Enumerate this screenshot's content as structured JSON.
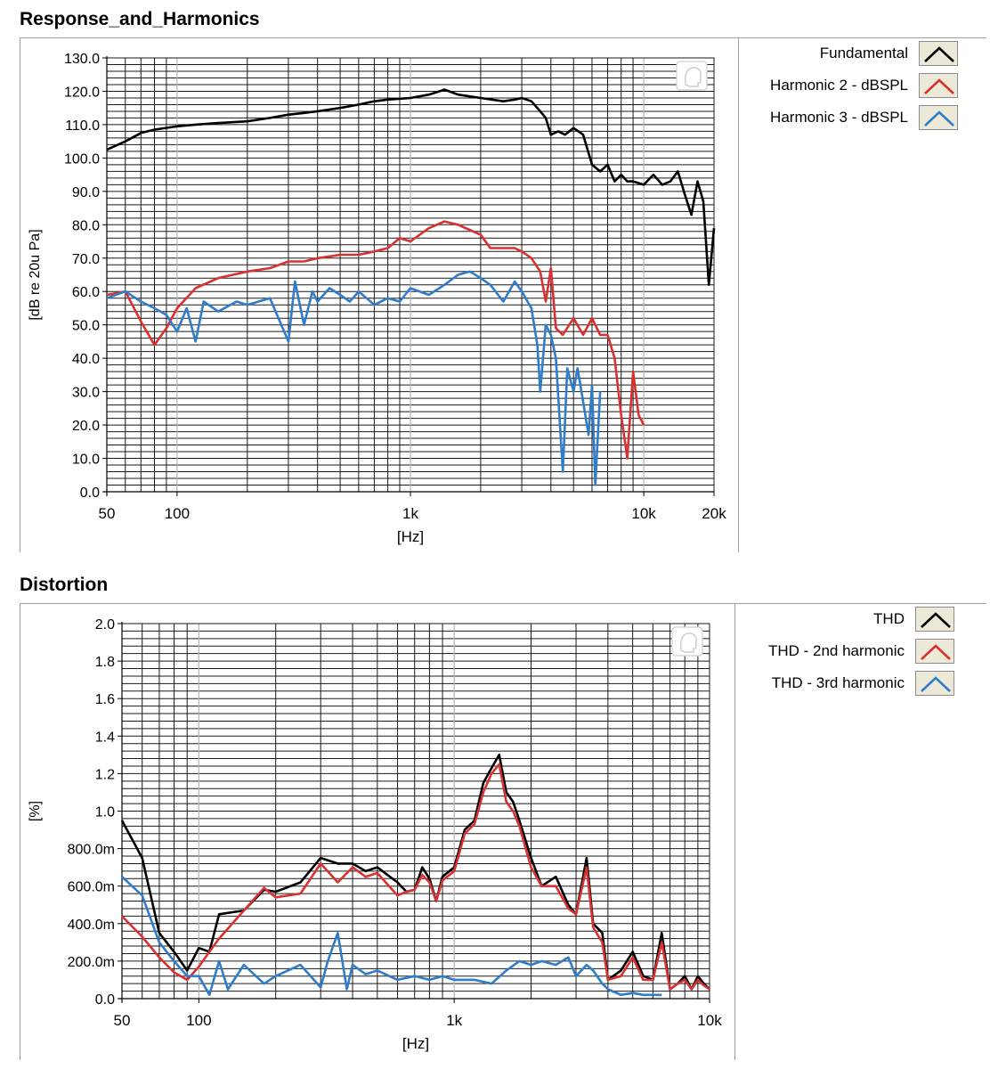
{
  "chart_data": [
    {
      "type": "line",
      "title": "Response_and_Harmonics",
      "xlabel": "[Hz]",
      "ylabel": "[dB re 20u Pa]",
      "x_scale": "log",
      "xlim": [
        50,
        20000
      ],
      "ylim": [
        0,
        130
      ],
      "grid": true,
      "legend_position": "right",
      "x_ticks": [
        50,
        100,
        1000,
        10000,
        20000
      ],
      "x_tick_labels": [
        "50",
        "100",
        "1k",
        "10k",
        "20k"
      ],
      "y_ticks": [
        0,
        10,
        20,
        30,
        40,
        50,
        60,
        70,
        80,
        90,
        100,
        110,
        120,
        130
      ],
      "y_tick_labels": [
        "0.0",
        "10.0",
        "20.0",
        "30.0",
        "40.0",
        "50.0",
        "60.0",
        "70.0",
        "80.0",
        "90.0",
        "100.0",
        "110.0",
        "120.0",
        "130.0"
      ],
      "series": [
        {
          "name": "Fundamental",
          "color": "#000000",
          "x": [
            50,
            60,
            70,
            80,
            100,
            120,
            150,
            200,
            250,
            300,
            350,
            400,
            500,
            600,
            700,
            800,
            1000,
            1200,
            1400,
            1600,
            2000,
            2500,
            2800,
            3000,
            3300,
            3600,
            3800,
            4000,
            4300,
            4600,
            5000,
            5500,
            6000,
            6500,
            7000,
            7500,
            8000,
            8500,
            9000,
            10000,
            11000,
            12000,
            13000,
            14000,
            15000,
            16000,
            17000,
            18000,
            19000,
            20000
          ],
          "y": [
            102.5,
            105,
            107.5,
            108.5,
            109.5,
            110,
            110.5,
            111,
            112,
            113,
            113.5,
            114,
            115,
            116,
            117,
            117.5,
            118,
            119,
            120.5,
            119,
            118,
            117,
            117.5,
            118,
            117,
            114,
            112,
            107,
            108,
            107,
            109,
            107,
            98,
            96,
            98,
            93,
            95,
            93,
            93,
            92,
            95,
            92,
            93,
            96,
            89,
            83,
            93,
            87,
            62,
            79
          ]
        },
        {
          "name": "Harmonic 2 - dBSPL",
          "color": "#d93030",
          "x": [
            50,
            60,
            70,
            80,
            90,
            100,
            120,
            150,
            200,
            250,
            300,
            350,
            400,
            500,
            600,
            700,
            800,
            900,
            1000,
            1200,
            1400,
            1600,
            2000,
            2200,
            2500,
            2800,
            3000,
            3300,
            3600,
            3800,
            4000,
            4200,
            4500,
            5000,
            5500,
            6000,
            6500,
            7000,
            7500,
            8000,
            8500,
            9000,
            9500,
            10000
          ],
          "y": [
            59,
            60,
            51,
            44,
            49,
            55,
            61,
            64,
            66,
            67,
            69,
            69,
            70,
            71,
            71,
            72,
            73,
            76,
            75,
            79,
            81,
            80,
            77,
            73,
            73,
            73,
            72,
            70,
            66,
            57,
            67,
            49,
            47,
            52,
            47,
            52,
            47,
            47,
            40,
            23,
            10,
            36,
            23,
            20
          ]
        },
        {
          "name": "Harmonic 3 - dBSPL",
          "color": "#2f7dc9",
          "x": [
            50,
            60,
            70,
            80,
            90,
            100,
            110,
            120,
            130,
            150,
            180,
            200,
            250,
            300,
            320,
            350,
            380,
            400,
            450,
            500,
            550,
            600,
            700,
            800,
            900,
            1000,
            1200,
            1400,
            1600,
            1800,
            2000,
            2200,
            2500,
            2800,
            3000,
            3300,
            3500,
            3600,
            3800,
            4000,
            4200,
            4500,
            4700,
            5000,
            5200,
            5500,
            5800,
            6000,
            6200,
            6500
          ],
          "y": [
            58,
            60,
            57,
            55,
            53,
            48,
            55,
            45,
            57,
            54,
            57,
            56,
            58,
            45,
            63,
            50,
            60,
            57,
            61,
            59,
            57,
            60,
            56,
            58,
            57,
            61,
            59,
            62,
            65,
            66,
            64,
            62,
            57,
            63,
            60,
            55,
            44,
            30,
            50,
            47,
            40,
            6,
            37,
            30,
            37,
            27,
            17,
            32,
            2,
            30
          ]
        }
      ]
    },
    {
      "type": "line",
      "title": "Distortion",
      "xlabel": "[Hz]",
      "ylabel": "[%]",
      "x_scale": "log",
      "xlim": [
        50,
        10000
      ],
      "ylim": [
        0,
        2
      ],
      "grid": true,
      "legend_position": "right",
      "x_ticks": [
        50,
        100,
        1000,
        10000
      ],
      "x_tick_labels": [
        "50",
        "100",
        "1k",
        "10k"
      ],
      "y_ticks": [
        0,
        0.2,
        0.4,
        0.6,
        0.8,
        1.0,
        1.2,
        1.4,
        1.6,
        1.8,
        2.0
      ],
      "y_tick_labels": [
        "0.0",
        "200.0m",
        "400.0m",
        "600.0m",
        "800.0m",
        "1.0",
        "1.2",
        "1.4",
        "1.6",
        "1.8",
        "2.0"
      ],
      "series": [
        {
          "name": "THD",
          "color": "#000000",
          "x": [
            50,
            60,
            70,
            80,
            90,
            100,
            110,
            120,
            150,
            180,
            200,
            250,
            300,
            350,
            400,
            450,
            500,
            600,
            650,
            700,
            750,
            800,
            850,
            900,
            1000,
            1100,
            1200,
            1300,
            1400,
            1500,
            1600,
            1700,
            1800,
            2000,
            2200,
            2500,
            2800,
            3000,
            3300,
            3500,
            3800,
            4000,
            4500,
            5000,
            5500,
            6000,
            6500,
            7000,
            7500,
            8000,
            8500,
            9000,
            9500,
            10000
          ],
          "y": [
            0.95,
            0.75,
            0.35,
            0.25,
            0.15,
            0.27,
            0.25,
            0.45,
            0.47,
            0.58,
            0.57,
            0.62,
            0.75,
            0.72,
            0.72,
            0.68,
            0.7,
            0.62,
            0.57,
            0.58,
            0.7,
            0.64,
            0.52,
            0.65,
            0.7,
            0.9,
            0.95,
            1.15,
            1.23,
            1.3,
            1.1,
            1.05,
            0.95,
            0.75,
            0.6,
            0.65,
            0.5,
            0.45,
            0.75,
            0.4,
            0.35,
            0.1,
            0.15,
            0.25,
            0.12,
            0.1,
            0.35,
            0.05,
            0.08,
            0.12,
            0.05,
            0.12,
            0.08,
            0.05
          ]
        },
        {
          "name": "THD - 2nd harmonic",
          "color": "#d93030",
          "x": [
            50,
            60,
            70,
            80,
            90,
            100,
            110,
            120,
            150,
            180,
            200,
            250,
            300,
            350,
            400,
            450,
            500,
            600,
            650,
            700,
            750,
            800,
            850,
            900,
            1000,
            1100,
            1200,
            1300,
            1400,
            1500,
            1600,
            1700,
            1800,
            2000,
            2200,
            2500,
            2800,
            3000,
            3300,
            3500,
            3800,
            4000,
            4500,
            5000,
            5500,
            6000,
            6500,
            7000,
            7500,
            8000,
            8500,
            9000,
            9500,
            10000
          ],
          "y": [
            0.44,
            0.33,
            0.22,
            0.14,
            0.1,
            0.17,
            0.25,
            0.32,
            0.47,
            0.59,
            0.54,
            0.56,
            0.72,
            0.62,
            0.7,
            0.65,
            0.67,
            0.55,
            0.57,
            0.58,
            0.66,
            0.62,
            0.52,
            0.63,
            0.68,
            0.88,
            0.93,
            1.1,
            1.2,
            1.25,
            1.05,
            1.0,
            0.92,
            0.7,
            0.6,
            0.6,
            0.48,
            0.45,
            0.7,
            0.38,
            0.3,
            0.1,
            0.12,
            0.22,
            0.1,
            0.1,
            0.3,
            0.05,
            0.08,
            0.1,
            0.05,
            0.1,
            0.07,
            0.05
          ]
        },
        {
          "name": "THD - 3rd harmonic",
          "color": "#2f7dc9",
          "x": [
            50,
            60,
            70,
            80,
            90,
            100,
            110,
            120,
            130,
            150,
            180,
            200,
            250,
            300,
            320,
            350,
            380,
            400,
            450,
            500,
            600,
            700,
            800,
            900,
            1000,
            1200,
            1400,
            1600,
            1800,
            2000,
            2200,
            2500,
            2800,
            3000,
            3300,
            3500,
            3800,
            4000,
            4500,
            5000,
            5500,
            6000,
            6500
          ],
          "y": [
            0.65,
            0.55,
            0.3,
            0.2,
            0.12,
            0.12,
            0.02,
            0.2,
            0.05,
            0.18,
            0.08,
            0.12,
            0.18,
            0.06,
            0.2,
            0.35,
            0.05,
            0.18,
            0.13,
            0.15,
            0.1,
            0.12,
            0.1,
            0.12,
            0.1,
            0.1,
            0.08,
            0.15,
            0.2,
            0.18,
            0.2,
            0.18,
            0.22,
            0.12,
            0.18,
            0.15,
            0.08,
            0.05,
            0.02,
            0.03,
            0.02,
            0.02,
            0.02
          ]
        }
      ]
    }
  ],
  "legend_icons": {
    "swatch_bg": "#ece9d8",
    "swatch_border": "#8c8c8c",
    "grid_color": "#1a1a1a",
    "grid_major_color": "#b4b4b4",
    "icon": "person-head-icon"
  }
}
